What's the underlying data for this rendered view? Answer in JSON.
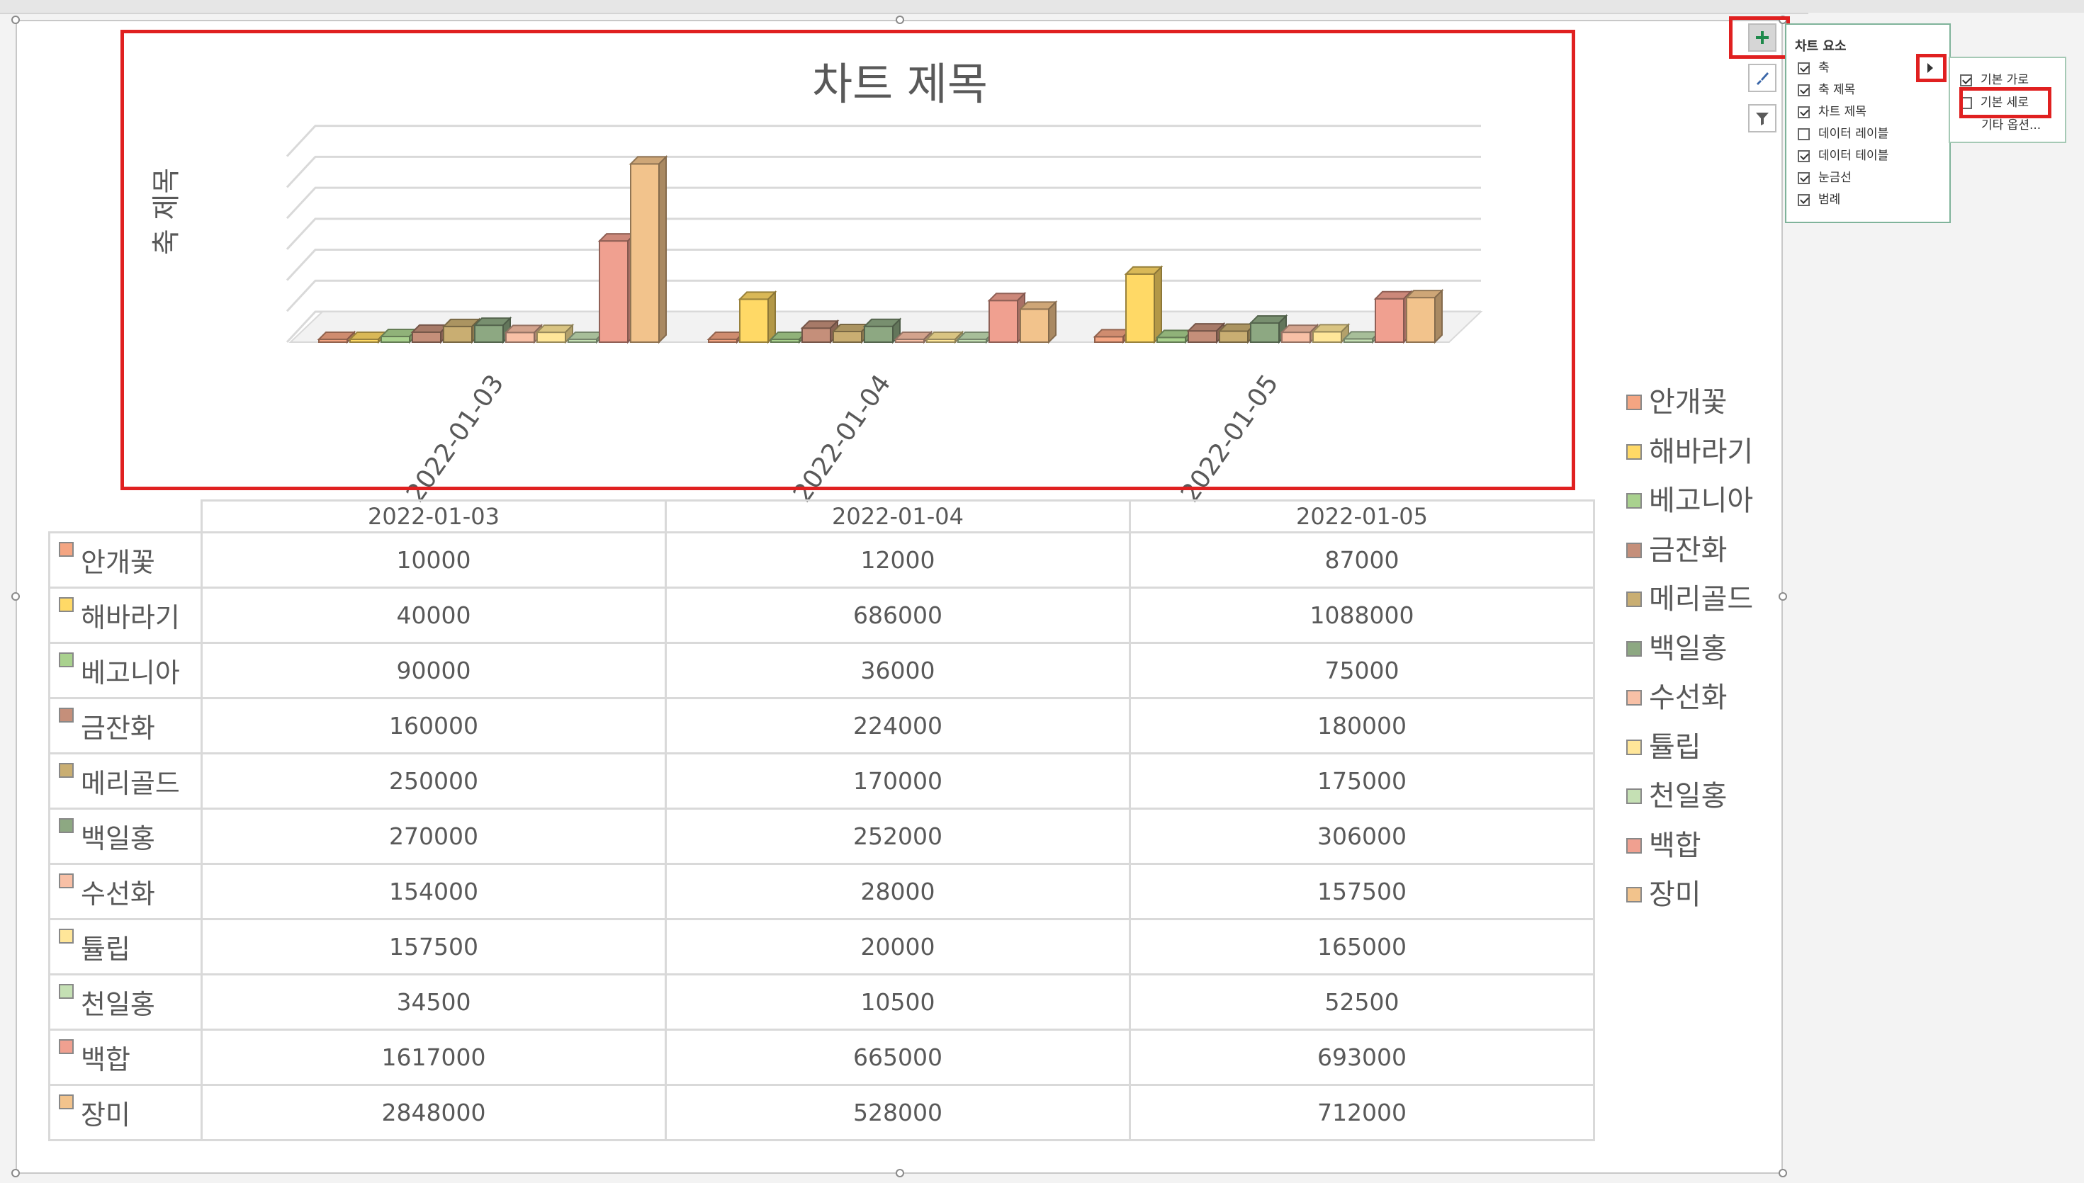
{
  "chart": {
    "title": "차트 제목",
    "axis_title": "축 제목"
  },
  "chart_data": {
    "type": "bar",
    "title": "차트 제목",
    "ylabel": "축 제목",
    "categories": [
      "2022-01-03",
      "2022-01-04",
      "2022-01-05"
    ],
    "series": [
      {
        "name": "안개꽃",
        "color": "#f4a582",
        "values": [
          10000,
          12000,
          87000
        ]
      },
      {
        "name": "해바라기",
        "color": "#ffd966",
        "values": [
          40000,
          686000,
          1088000
        ]
      },
      {
        "name": "베고니아",
        "color": "#a9d18e",
        "values": [
          90000,
          36000,
          75000
        ]
      },
      {
        "name": "금잔화",
        "color": "#c58f7a",
        "values": [
          160000,
          224000,
          180000
        ]
      },
      {
        "name": "메리골드",
        "color": "#c9ae72",
        "values": [
          250000,
          170000,
          175000
        ]
      },
      {
        "name": "백일홍",
        "color": "#8da882",
        "values": [
          270000,
          252000,
          306000
        ]
      },
      {
        "name": "수선화",
        "color": "#f8c0a6",
        "values": [
          154000,
          28000,
          157500
        ]
      },
      {
        "name": "튤립",
        "color": "#ffe699",
        "values": [
          157500,
          20000,
          165000
        ]
      },
      {
        "name": "천일홍",
        "color": "#c5e0b4",
        "values": [
          34500,
          10500,
          52500
        ]
      },
      {
        "name": "백합",
        "color": "#f0a090",
        "values": [
          1617000,
          665000,
          693000
        ]
      },
      {
        "name": "장미",
        "color": "#f2c38c",
        "values": [
          2848000,
          528000,
          712000
        ]
      }
    ],
    "ylim": [
      0,
      3000000
    ],
    "grid": true,
    "legend_position": "right",
    "data_table": true
  },
  "panel": {
    "title": "차트 요소",
    "items": [
      {
        "label": "축",
        "checked": true
      },
      {
        "label": "축 제목",
        "checked": true
      },
      {
        "label": "차트 제목",
        "checked": true
      },
      {
        "label": "데이터 레이블",
        "checked": false
      },
      {
        "label": "데이터 테이블",
        "checked": true
      },
      {
        "label": "눈금선",
        "checked": true
      },
      {
        "label": "범례",
        "checked": true
      }
    ],
    "submenu": [
      {
        "label": "기본 가로",
        "checked": true
      },
      {
        "label": "기본 세로",
        "checked": false
      },
      {
        "label": "기타 옵션..."
      }
    ]
  },
  "icons": [
    "plus-icon",
    "brush-icon",
    "filter-icon",
    "triangle-right-icon"
  ]
}
